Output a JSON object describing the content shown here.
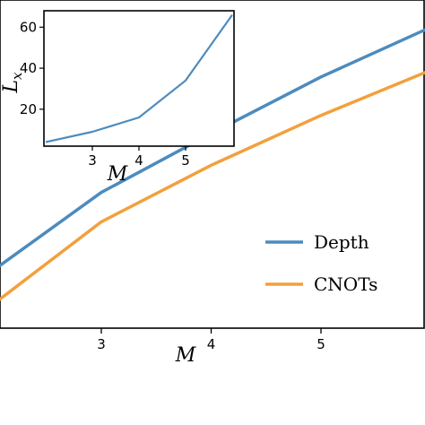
{
  "chart_data": [
    {
      "type": "line",
      "x": [
        2,
        3,
        4,
        5,
        6
      ],
      "xticks": [
        "3",
        "4",
        "5"
      ],
      "xticks_values": [
        3,
        4,
        5
      ],
      "xlabel": "M",
      "ylabel": "",
      "legend_position": "right",
      "grid": false,
      "series": [
        {
          "name": "Depth",
          "color": "#4c8bbe",
          "values": [
            0.25,
            0.6,
            0.86,
            1.11,
            1.33
          ]
        },
        {
          "name": "CNOTs",
          "color": "#f2a03d",
          "values": [
            0.1,
            0.47,
            0.72,
            0.94,
            1.14
          ]
        }
      ],
      "xlim": [
        2,
        6
      ],
      "ylim": [
        0,
        1.45
      ]
    },
    {
      "type": "line",
      "x": [
        2,
        3,
        4,
        5,
        6
      ],
      "xticks": [
        "3",
        "4",
        "5"
      ],
      "xticks_values": [
        3,
        4,
        5
      ],
      "yticks": [
        "20",
        "40",
        "60"
      ],
      "yticks_values": [
        20,
        40,
        60
      ],
      "xlabel": "M",
      "ylabel": "L",
      "ylabel_subscript": "x",
      "grid": false,
      "series": [
        {
          "color": "#4c8bbe",
          "values": [
            4,
            9,
            16,
            34,
            66
          ]
        }
      ],
      "xlim": [
        2,
        6
      ],
      "ylim": [
        2,
        68
      ]
    }
  ]
}
